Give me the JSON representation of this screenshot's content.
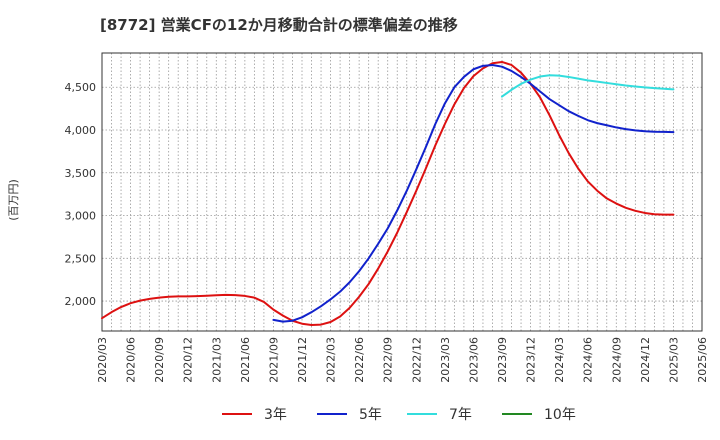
{
  "chart_data": {
    "type": "line",
    "title": "[8772]  営業CFの12か月移動合計の標準偏差の推移",
    "ylabel": "(百万円)",
    "xlabel": "",
    "ylim": [
      1650,
      4900
    ],
    "yticks": [
      2000,
      2500,
      3000,
      3500,
      4000,
      4500
    ],
    "ytick_labels": [
      "2,000",
      "2,500",
      "3,000",
      "3,500",
      "4,000",
      "4,500"
    ],
    "x_range": [
      "2020-03",
      "2025-06"
    ],
    "x_ticks": [
      "2020/03",
      "2020/06",
      "2020/09",
      "2020/12",
      "2021/03",
      "2021/06",
      "2021/09",
      "2021/12",
      "2022/03",
      "2022/06",
      "2022/09",
      "2022/12",
      "2023/03",
      "2023/06",
      "2023/09",
      "2023/12",
      "2024/03",
      "2024/06",
      "2024/09",
      "2024/12",
      "2025/03",
      "2025/06"
    ],
    "grid": true,
    "legend_position": "bottom",
    "series": [
      {
        "name": "3年",
        "color": "#dd1111",
        "points": [
          [
            "2020-03",
            1800
          ],
          [
            "2020-04",
            1870
          ],
          [
            "2020-05",
            1930
          ],
          [
            "2020-06",
            1975
          ],
          [
            "2020-07",
            2005
          ],
          [
            "2020-08",
            2025
          ],
          [
            "2020-09",
            2040
          ],
          [
            "2020-10",
            2050
          ],
          [
            "2020-11",
            2055
          ],
          [
            "2020-12",
            2055
          ],
          [
            "2021-01",
            2058
          ],
          [
            "2021-02",
            2062
          ],
          [
            "2021-03",
            2068
          ],
          [
            "2021-04",
            2072
          ],
          [
            "2021-05",
            2070
          ],
          [
            "2021-06",
            2060
          ],
          [
            "2021-07",
            2040
          ],
          [
            "2021-08",
            1990
          ],
          [
            "2021-09",
            1900
          ],
          [
            "2021-10",
            1830
          ],
          [
            "2021-11",
            1770
          ],
          [
            "2021-12",
            1735
          ],
          [
            "2022-01",
            1720
          ],
          [
            "2022-02",
            1725
          ],
          [
            "2022-03",
            1755
          ],
          [
            "2022-04",
            1820
          ],
          [
            "2022-05",
            1920
          ],
          [
            "2022-06",
            2050
          ],
          [
            "2022-07",
            2200
          ],
          [
            "2022-08",
            2380
          ],
          [
            "2022-09",
            2580
          ],
          [
            "2022-10",
            2800
          ],
          [
            "2022-11",
            3040
          ],
          [
            "2022-12",
            3290
          ],
          [
            "2023-01",
            3550
          ],
          [
            "2023-02",
            3820
          ],
          [
            "2023-03",
            4070
          ],
          [
            "2023-04",
            4300
          ],
          [
            "2023-05",
            4490
          ],
          [
            "2023-06",
            4630
          ],
          [
            "2023-07",
            4720
          ],
          [
            "2023-08",
            4780
          ],
          [
            "2023-09",
            4795
          ],
          [
            "2023-10",
            4760
          ],
          [
            "2023-11",
            4670
          ],
          [
            "2023-12",
            4540
          ],
          [
            "2024-01",
            4380
          ],
          [
            "2024-02",
            4170
          ],
          [
            "2024-03",
            3940
          ],
          [
            "2024-04",
            3730
          ],
          [
            "2024-05",
            3550
          ],
          [
            "2024-06",
            3400
          ],
          [
            "2024-07",
            3290
          ],
          [
            "2024-08",
            3200
          ],
          [
            "2024-09",
            3140
          ],
          [
            "2024-10",
            3090
          ],
          [
            "2024-11",
            3055
          ],
          [
            "2024-12",
            3030
          ],
          [
            "2025-01",
            3015
          ],
          [
            "2025-02",
            3010
          ],
          [
            "2025-03",
            3010
          ]
        ]
      },
      {
        "name": "5年",
        "color": "#1122cc",
        "points": [
          [
            "2021-09",
            1780
          ],
          [
            "2021-10",
            1760
          ],
          [
            "2021-11",
            1770
          ],
          [
            "2021-12",
            1810
          ],
          [
            "2022-01",
            1870
          ],
          [
            "2022-02",
            1940
          ],
          [
            "2022-03",
            2020
          ],
          [
            "2022-04",
            2110
          ],
          [
            "2022-05",
            2220
          ],
          [
            "2022-06",
            2350
          ],
          [
            "2022-07",
            2500
          ],
          [
            "2022-08",
            2670
          ],
          [
            "2022-09",
            2850
          ],
          [
            "2022-10",
            3060
          ],
          [
            "2022-11",
            3290
          ],
          [
            "2022-12",
            3540
          ],
          [
            "2023-01",
            3800
          ],
          [
            "2023-02",
            4070
          ],
          [
            "2023-03",
            4310
          ],
          [
            "2023-04",
            4500
          ],
          [
            "2023-05",
            4620
          ],
          [
            "2023-06",
            4710
          ],
          [
            "2023-07",
            4750
          ],
          [
            "2023-08",
            4760
          ],
          [
            "2023-09",
            4740
          ],
          [
            "2023-10",
            4690
          ],
          [
            "2023-11",
            4620
          ],
          [
            "2023-12",
            4540
          ],
          [
            "2024-01",
            4450
          ],
          [
            "2024-02",
            4360
          ],
          [
            "2024-03",
            4290
          ],
          [
            "2024-04",
            4220
          ],
          [
            "2024-05",
            4165
          ],
          [
            "2024-06",
            4115
          ],
          [
            "2024-07",
            4080
          ],
          [
            "2024-08",
            4055
          ],
          [
            "2024-09",
            4030
          ],
          [
            "2024-10",
            4010
          ],
          [
            "2024-11",
            3995
          ],
          [
            "2024-12",
            3985
          ],
          [
            "2025-01",
            3980
          ],
          [
            "2025-02",
            3978
          ],
          [
            "2025-03",
            3975
          ]
        ]
      },
      {
        "name": "7年",
        "color": "#33dddd",
        "points": [
          [
            "2023-09",
            4390
          ],
          [
            "2023-10",
            4470
          ],
          [
            "2023-11",
            4540
          ],
          [
            "2023-12",
            4590
          ],
          [
            "2024-01",
            4625
          ],
          [
            "2024-02",
            4640
          ],
          [
            "2024-03",
            4635
          ],
          [
            "2024-04",
            4620
          ],
          [
            "2024-05",
            4600
          ],
          [
            "2024-06",
            4580
          ],
          [
            "2024-07",
            4565
          ],
          [
            "2024-08",
            4550
          ],
          [
            "2024-09",
            4535
          ],
          [
            "2024-10",
            4520
          ],
          [
            "2024-11",
            4508
          ],
          [
            "2024-12",
            4498
          ],
          [
            "2025-01",
            4490
          ],
          [
            "2025-02",
            4482
          ],
          [
            "2025-03",
            4475
          ]
        ]
      },
      {
        "name": "10年",
        "color": "#228822",
        "points": []
      }
    ]
  }
}
